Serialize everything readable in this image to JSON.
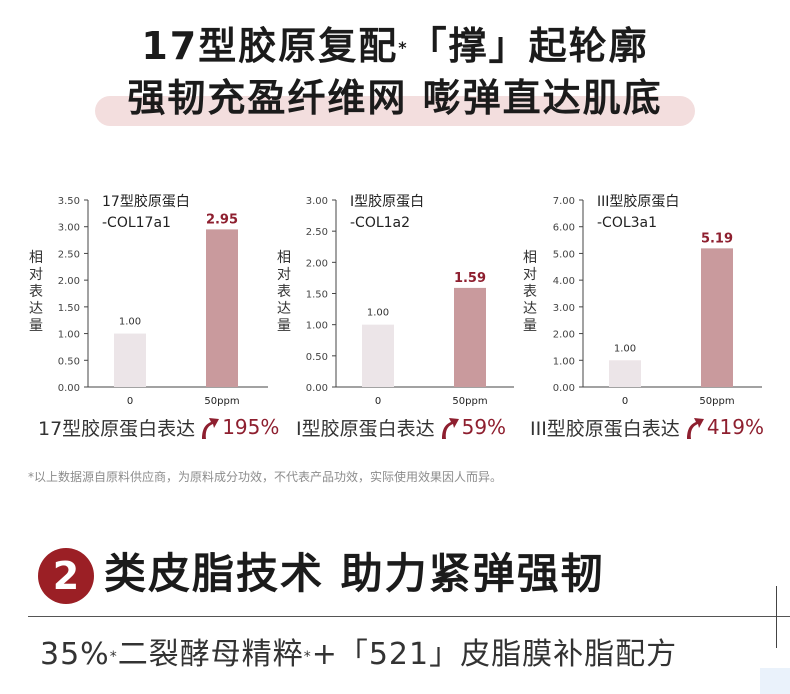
{
  "hero": {
    "line1_a": "17型胶原复配",
    "line1_star": "*",
    "line1_b": "「撑」起轮廓",
    "line2": "强韧充盈纤维网 嘭弹直达肌底"
  },
  "chart_data": [
    {
      "type": "bar",
      "title": "17型胶原蛋白",
      "subtitle": "-COL17a1",
      "ylabel": "相对表达量",
      "categories": [
        "0",
        "50ppm"
      ],
      "values": [
        1.0,
        2.95
      ],
      "value_labels": [
        "1.00",
        "2.95"
      ],
      "ylim": [
        0,
        3.5
      ],
      "yticks": [
        "0.00",
        "0.50",
        "1.00",
        "1.50",
        "2.00",
        "2.50",
        "3.00",
        "3.50"
      ],
      "colors": [
        "#ece5e8",
        "#c99a9d"
      ],
      "highlight_color": "#8e1f2f",
      "caption": "17型胶原蛋白表达",
      "increase": "195%"
    },
    {
      "type": "bar",
      "title": "I型胶原蛋白",
      "subtitle": "-COL1a2",
      "ylabel": "相对表达量",
      "categories": [
        "0",
        "50ppm"
      ],
      "values": [
        1.0,
        1.59
      ],
      "value_labels": [
        "1.00",
        "1.59"
      ],
      "ylim": [
        0,
        3.0
      ],
      "yticks": [
        "0.00",
        "0.50",
        "1.00",
        "1.50",
        "2.00",
        "2.50",
        "3.00"
      ],
      "colors": [
        "#ece5e8",
        "#c99a9d"
      ],
      "highlight_color": "#8e1f2f",
      "caption": "I型胶原蛋白表达",
      "increase": "59%"
    },
    {
      "type": "bar",
      "title": "III型胶原蛋白",
      "subtitle": "-COL3a1",
      "ylabel": "相对表达量",
      "categories": [
        "0",
        "50ppm"
      ],
      "values": [
        1.0,
        5.19
      ],
      "value_labels": [
        "1.00",
        "5.19"
      ],
      "ylim": [
        0,
        7.0
      ],
      "yticks": [
        "0.00",
        "1.00",
        "2.00",
        "3.00",
        "4.00",
        "5.00",
        "6.00",
        "7.00"
      ],
      "colors": [
        "#ece5e8",
        "#c99a9d"
      ],
      "highlight_color": "#8e1f2f",
      "caption": "III型胶原蛋白表达",
      "increase": "419%"
    }
  ],
  "disclaimer": "*以上数据源自原料供应商，为原料成分功效，不代表产品功效，实际使用效果因人而异。",
  "section": {
    "number": "2",
    "title": "类皮脂技术 助力紧弹强韧"
  },
  "formula": {
    "a": "35%",
    "star1": "*",
    "b": "二裂酵母精粹",
    "star2": "*",
    "c": "+「521」皮脂膜补脂配方"
  }
}
